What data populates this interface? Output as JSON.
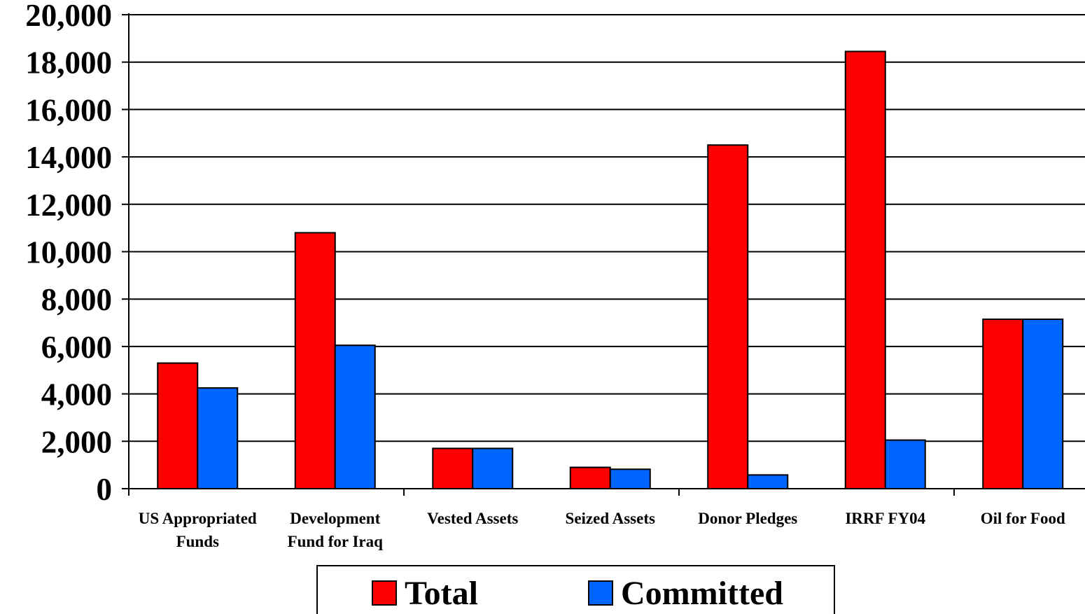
{
  "chart_data": {
    "type": "bar",
    "categories": [
      [
        "US Appropriated",
        "Funds"
      ],
      [
        "Development",
        "Fund for Iraq"
      ],
      [
        "Vested Assets"
      ],
      [
        "Seized Assets"
      ],
      [
        "Donor Pledges"
      ],
      [
        "IRRF FY04"
      ],
      [
        "Oil for Food"
      ]
    ],
    "series": [
      {
        "name": "Total",
        "color": "#ff0000",
        "values": [
          5300,
          10800,
          1700,
          900,
          14500,
          18450,
          7150
        ]
      },
      {
        "name": "Committed",
        "color": "#0066ff",
        "values": [
          4250,
          6050,
          1700,
          820,
          580,
          2050,
          7150
        ]
      }
    ],
    "ylim": [
      0,
      20000
    ],
    "yticks": [
      0,
      2000,
      4000,
      6000,
      8000,
      10000,
      12000,
      14000,
      16000,
      18000,
      20000
    ],
    "ytick_labels": [
      "0",
      "2,000",
      "4,000",
      "6,000",
      "8,000",
      "10,000",
      "12,000",
      "14,000",
      "16,000",
      "18,000",
      "20,000"
    ],
    "grid": true,
    "legend_position": "bottom-center"
  }
}
